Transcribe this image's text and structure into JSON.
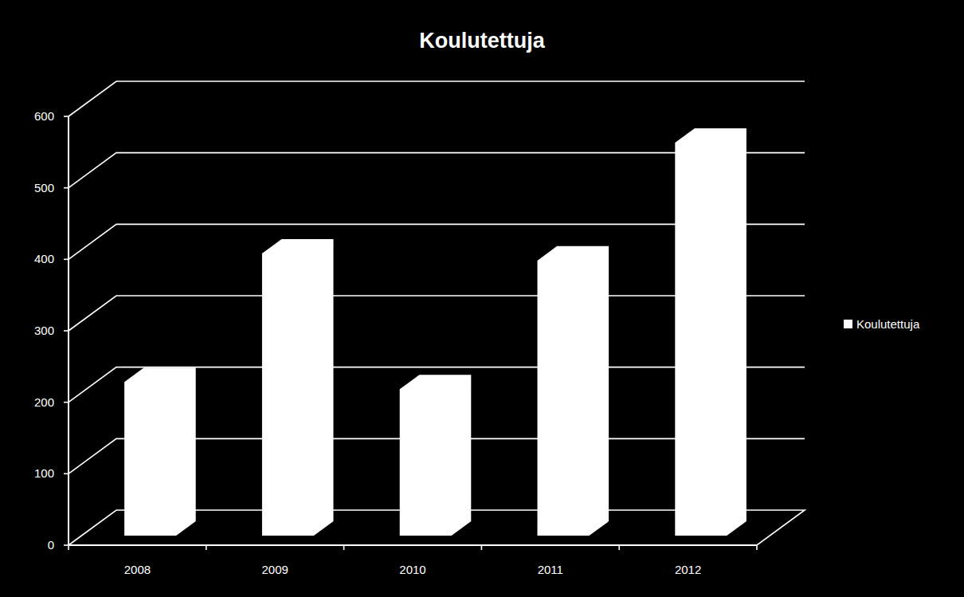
{
  "chart_data": {
    "type": "bar",
    "title": "Koulutettuja",
    "categories": [
      "2008",
      "2009",
      "2010",
      "2011",
      "2012"
    ],
    "series": [
      {
        "name": "Koulutettuja",
        "color": "#ffffff",
        "values": [
          215,
          395,
          205,
          385,
          550
        ]
      }
    ],
    "ylim": [
      0,
      600
    ],
    "yticks": [
      0,
      100,
      200,
      300,
      400,
      500,
      600
    ],
    "grid": true,
    "legend": "right"
  }
}
